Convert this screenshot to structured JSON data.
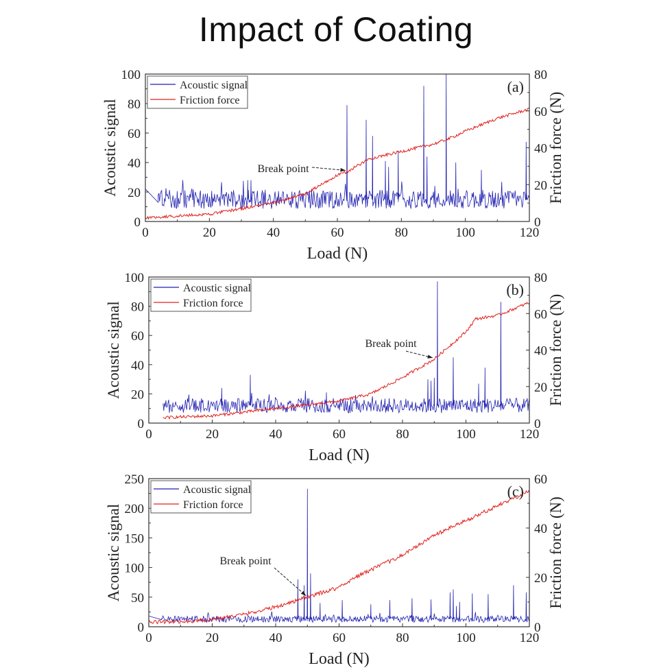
{
  "title": "Impact of Coating",
  "colors": {
    "acoustic": "#1f1fb0",
    "friction": "#e0201c",
    "axis": "#333333"
  },
  "chart_data": [
    {
      "type": "line",
      "panel_label": "(a)",
      "xlabel": "Load (N)",
      "ylabel": "Acoustic signal",
      "y2label": "Friction force (N)",
      "xlim": [
        0,
        120
      ],
      "xticks": [
        0,
        20,
        40,
        60,
        80,
        100,
        120
      ],
      "ylim": [
        0,
        100
      ],
      "yticks": [
        0,
        20,
        40,
        60,
        80,
        100
      ],
      "y2lim": [
        0,
        80
      ],
      "y2ticks": [
        0,
        20,
        40,
        60,
        80
      ],
      "legend": {
        "position": "top-left",
        "entries": [
          "Acoustic signal",
          "Friction force"
        ]
      },
      "annotation": {
        "text": "Break point",
        "load": 63
      },
      "series": [
        {
          "name": "Acoustic signal",
          "axis": "left",
          "x_start": 0,
          "start_values": [
            [
              0,
              22
            ],
            [
              4,
              13
            ]
          ],
          "baseline": 15,
          "spikes": [
            [
              63,
              79
            ],
            [
              69,
              69
            ],
            [
              71,
              58
            ],
            [
              75,
              41
            ],
            [
              76,
              37
            ],
            [
              79,
              48
            ],
            [
              87,
              92
            ],
            [
              88,
              44
            ],
            [
              94,
              100
            ],
            [
              97,
              40
            ],
            [
              105,
              35
            ],
            [
              119,
              54
            ],
            [
              32,
              28
            ],
            [
              33,
              28
            ]
          ]
        },
        {
          "name": "Friction force",
          "axis": "right",
          "points": [
            [
              0,
              2
            ],
            [
              10,
              3
            ],
            [
              20,
              4
            ],
            [
              30,
              7
            ],
            [
              40,
              10
            ],
            [
              50,
              15
            ],
            [
              55,
              20
            ],
            [
              60,
              25
            ],
            [
              63,
              27
            ],
            [
              70,
              34
            ],
            [
              75,
              36
            ],
            [
              80,
              38
            ],
            [
              90,
              42
            ],
            [
              95,
              45
            ],
            [
              100,
              49
            ],
            [
              110,
              56
            ],
            [
              120,
              61
            ]
          ]
        }
      ]
    },
    {
      "type": "line",
      "panel_label": "(b)",
      "xlabel": "Load (N)",
      "ylabel": "Acoustic signal",
      "y2label": "Friction force (N)",
      "xlim": [
        0,
        120
      ],
      "xticks": [
        0,
        20,
        40,
        60,
        80,
        100,
        120
      ],
      "ylim": [
        0,
        100
      ],
      "yticks": [
        0,
        20,
        40,
        60,
        80,
        100
      ],
      "y2lim": [
        0,
        80
      ],
      "y2ticks": [
        0,
        20,
        40,
        60,
        80
      ],
      "legend": {
        "position": "top-left",
        "entries": [
          "Acoustic signal",
          "Friction force"
        ]
      },
      "annotation": {
        "text": "Break point",
        "load": 90
      },
      "series": [
        {
          "name": "Acoustic signal",
          "axis": "left",
          "x_start": 4.5,
          "start_values": [],
          "baseline": 12,
          "spikes": [
            [
              23,
              24
            ],
            [
              32,
              33
            ],
            [
              56,
              21
            ],
            [
              88,
              30
            ],
            [
              89,
              29
            ],
            [
              90,
              31
            ],
            [
              91,
              97
            ],
            [
              96,
              45
            ],
            [
              104,
              27
            ],
            [
              106,
              38
            ],
            [
              111,
              83
            ]
          ]
        },
        {
          "name": "Friction force",
          "axis": "right",
          "points": [
            [
              4.5,
              3
            ],
            [
              20,
              4
            ],
            [
              30,
              6
            ],
            [
              40,
              8
            ],
            [
              50,
              10
            ],
            [
              60,
              12
            ],
            [
              70,
              16
            ],
            [
              80,
              25
            ],
            [
              90,
              35
            ],
            [
              100,
              50
            ],
            [
              103,
              57
            ],
            [
              110,
              59
            ],
            [
              120,
              66
            ]
          ]
        }
      ]
    },
    {
      "type": "line",
      "panel_label": "(c)",
      "xlabel": "Load (N)",
      "ylabel": "Acoustic signal",
      "y2label": "Friction force (N)",
      "xlim": [
        0,
        120
      ],
      "xticks": [
        0,
        20,
        40,
        60,
        80,
        100,
        120
      ],
      "ylim": [
        0,
        250
      ],
      "yticks": [
        0,
        50,
        100,
        150,
        200,
        250
      ],
      "y2lim": [
        0,
        60
      ],
      "y2ticks": [
        0,
        20,
        40,
        60
      ],
      "legend": {
        "position": "top-left",
        "entries": [
          "Acoustic signal",
          "Friction force"
        ]
      },
      "annotation": {
        "text": "Break point",
        "load": 50
      },
      "series": [
        {
          "name": "Acoustic signal",
          "axis": "left",
          "x_start": 0,
          "start_values": [
            [
              0,
              18
            ],
            [
              4,
              12
            ]
          ],
          "baseline": 13,
          "spikes": [
            [
              47,
              80
            ],
            [
              49,
              70
            ],
            [
              50,
              233
            ],
            [
              51,
              90
            ],
            [
              54,
              40
            ],
            [
              61,
              45
            ],
            [
              70,
              38
            ],
            [
              76,
              45
            ],
            [
              83,
              48
            ],
            [
              89,
              46
            ],
            [
              95,
              58
            ],
            [
              96,
              63
            ],
            [
              97,
              35
            ],
            [
              98,
              42
            ],
            [
              102,
              56
            ],
            [
              107,
              55
            ],
            [
              115,
              70
            ],
            [
              119,
              58
            ]
          ]
        },
        {
          "name": "Friction force",
          "axis": "right",
          "points": [
            [
              0,
              2
            ],
            [
              5,
              2
            ],
            [
              10,
              2
            ],
            [
              20,
              3
            ],
            [
              30,
              5
            ],
            [
              40,
              8
            ],
            [
              50,
              12
            ],
            [
              60,
              16
            ],
            [
              65,
              20
            ],
            [
              70,
              23
            ],
            [
              80,
              29
            ],
            [
              90,
              37
            ],
            [
              100,
              43
            ],
            [
              110,
              49
            ],
            [
              120,
              55
            ]
          ]
        }
      ]
    }
  ]
}
